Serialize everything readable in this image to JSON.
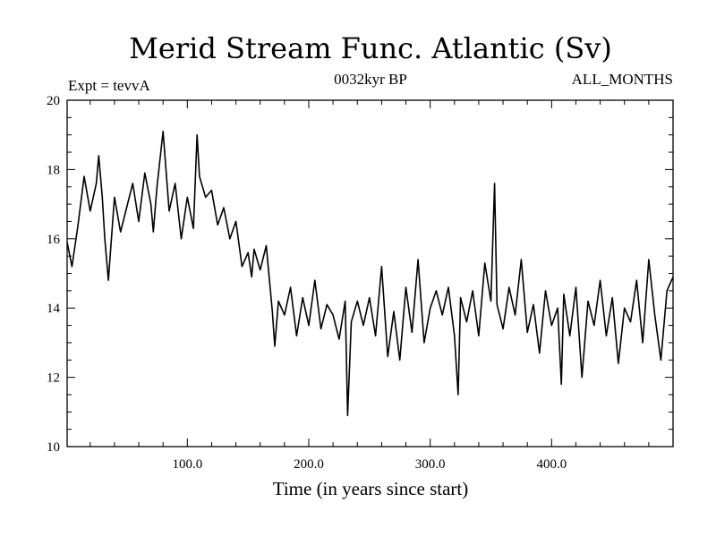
{
  "chart_data": {
    "type": "line",
    "title": "Merid Stream Func. Atlantic (Sv)",
    "expt_label": "Expt = tevvA",
    "subtitle": "0032kyr BP",
    "months_label": "ALL_MONTHS",
    "xlabel": "Time (in years since start)",
    "ylabel": "",
    "xlim": [
      1,
      500
    ],
    "ylim": [
      10,
      20
    ],
    "x_ticks": [
      100,
      200,
      300,
      400
    ],
    "x_tick_labels": [
      "100.0",
      "200.0",
      "300.0",
      "400.0"
    ],
    "y_ticks": [
      10,
      12,
      14,
      16,
      18,
      20
    ],
    "y_tick_labels": [
      "10",
      "12",
      "14",
      "16",
      "18",
      "20"
    ],
    "grid": false,
    "line_color": "#000000",
    "series": [
      {
        "x": [
          1,
          5,
          10,
          15,
          20,
          25,
          27,
          30,
          32,
          35,
          40,
          45,
          50,
          55,
          60,
          65,
          70,
          72,
          75,
          80,
          85,
          90,
          95,
          100,
          105,
          108,
          110,
          115,
          120,
          125,
          130,
          135,
          140,
          145,
          150,
          153,
          155,
          160,
          165,
          170,
          172,
          175,
          180,
          185,
          190,
          195,
          200,
          205,
          210,
          215,
          220,
          225,
          230,
          232,
          235,
          240,
          245,
          250,
          255,
          260,
          265,
          270,
          275,
          280,
          285,
          290,
          295,
          300,
          305,
          310,
          315,
          320,
          323,
          325,
          330,
          335,
          340,
          345,
          350,
          353,
          355,
          360,
          365,
          370,
          375,
          380,
          385,
          390,
          395,
          400,
          405,
          408,
          410,
          415,
          420,
          425,
          430,
          435,
          440,
          445,
          450,
          455,
          460,
          465,
          470,
          475,
          480,
          485,
          490,
          495,
          500
        ],
        "values": [
          15.9,
          15.2,
          16.4,
          17.8,
          16.8,
          17.6,
          18.4,
          17.2,
          16.0,
          14.8,
          17.2,
          16.2,
          16.9,
          17.6,
          16.5,
          17.9,
          17.0,
          16.2,
          17.5,
          19.1,
          16.8,
          17.6,
          16.0,
          17.2,
          16.3,
          19.0,
          17.8,
          17.2,
          17.4,
          16.4,
          16.9,
          16.0,
          16.5,
          15.2,
          15.6,
          14.9,
          15.7,
          15.1,
          15.8,
          13.9,
          12.9,
          14.2,
          13.8,
          14.6,
          13.2,
          14.3,
          13.5,
          14.8,
          13.4,
          14.1,
          13.8,
          13.1,
          14.2,
          10.9,
          13.6,
          14.2,
          13.5,
          14.3,
          13.2,
          15.2,
          12.6,
          13.9,
          12.5,
          14.6,
          13.3,
          15.4,
          13.0,
          14.0,
          14.5,
          13.8,
          14.6,
          13.2,
          11.5,
          14.3,
          13.6,
          14.5,
          13.2,
          15.3,
          14.2,
          17.6,
          14.1,
          13.4,
          14.6,
          13.8,
          15.4,
          13.3,
          14.1,
          12.7,
          14.5,
          13.5,
          14.0,
          11.8,
          14.4,
          13.2,
          14.6,
          12.0,
          14.2,
          13.5,
          14.8,
          13.2,
          14.3,
          12.4,
          14.0,
          13.6,
          14.8,
          13.0,
          15.4,
          13.8,
          12.5,
          14.5,
          14.9
        ]
      }
    ]
  }
}
